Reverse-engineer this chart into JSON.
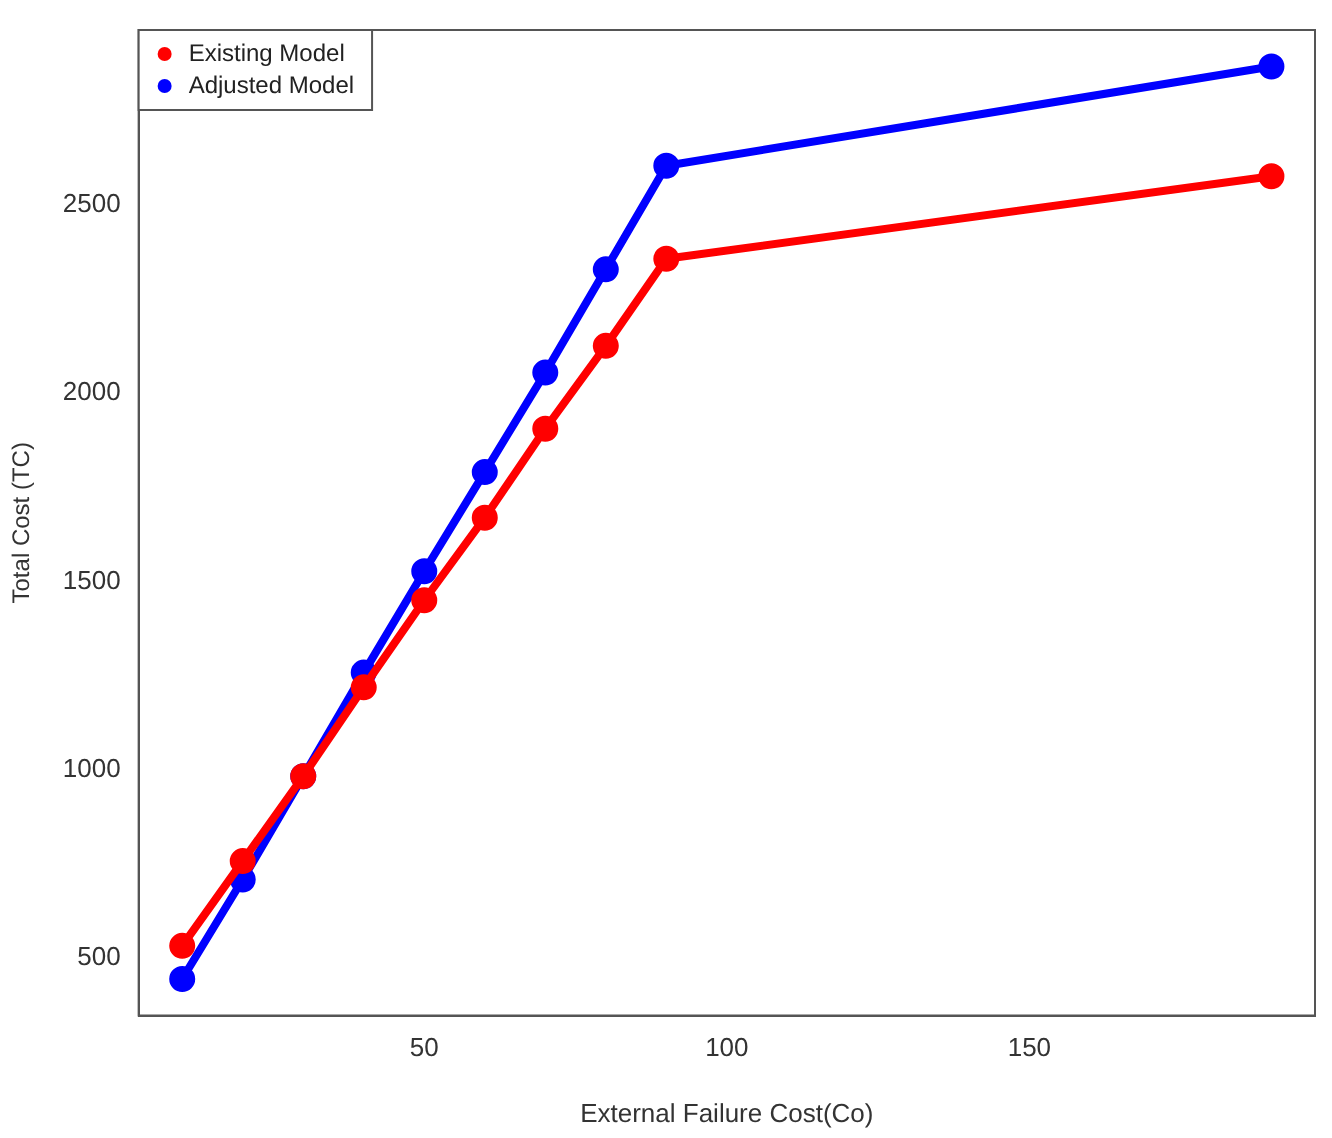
{
  "chart_data": {
    "type": "line",
    "xlabel": "External Failure Cost(Co)",
    "ylabel": "Total Cost (TC)",
    "x": [
      10,
      20,
      30,
      40,
      50,
      60,
      70,
      80,
      90,
      190
    ],
    "series": [
      {
        "name": "Existing Model",
        "color": "#ff0000",
        "values": [
          533,
          758,
          983,
          1219,
          1450,
          1669,
          1905,
          2125,
          2356,
          2575
        ]
      },
      {
        "name": "Adjusted Model",
        "color": "#0000ff",
        "values": [
          445,
          709,
          983,
          1258,
          1527,
          1790,
          2054,
          2328,
          2603,
          2866
        ]
      }
    ],
    "xlim": [
      2.8,
      197.2
    ],
    "xticks": [
      50,
      100,
      150
    ],
    "ylim": [
      348,
      2963
    ],
    "yticks": [
      500,
      1000,
      1500,
      2000,
      2500
    ],
    "grid": false,
    "legend": "top left",
    "marker": "circle",
    "line_style": "solid"
  }
}
